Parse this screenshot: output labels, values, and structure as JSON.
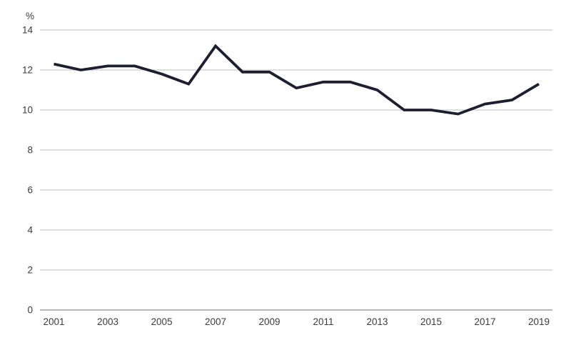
{
  "chart_data": {
    "type": "line",
    "title": "",
    "unit_label": "%",
    "x": [
      2001,
      2002,
      2003,
      2004,
      2005,
      2006,
      2007,
      2008,
      2009,
      2010,
      2011,
      2012,
      2013,
      2014,
      2015,
      2016,
      2017,
      2018,
      2019
    ],
    "series": [
      {
        "name": "percentage",
        "values": [
          12.3,
          12.0,
          12.2,
          12.2,
          11.8,
          11.3,
          13.2,
          11.9,
          11.9,
          11.1,
          11.4,
          11.4,
          11.0,
          10.0,
          10.0,
          9.8,
          10.3,
          10.5,
          11.3
        ]
      }
    ],
    "x_tick_labels": [
      "2001",
      "2003",
      "2005",
      "2007",
      "2009",
      "2011",
      "2013",
      "2015",
      "2017",
      "2019"
    ],
    "y_ticks": [
      0,
      2,
      4,
      6,
      8,
      10,
      12,
      14
    ],
    "ylim": [
      0,
      14
    ],
    "xlabel": "",
    "ylabel": "%",
    "grid": "horizontal",
    "legend": "none",
    "colors": {
      "line": "#1e1e33",
      "gridline": "#c9c9c9",
      "axis_line": "#aeaeae",
      "text": "#3c3c3c"
    }
  }
}
